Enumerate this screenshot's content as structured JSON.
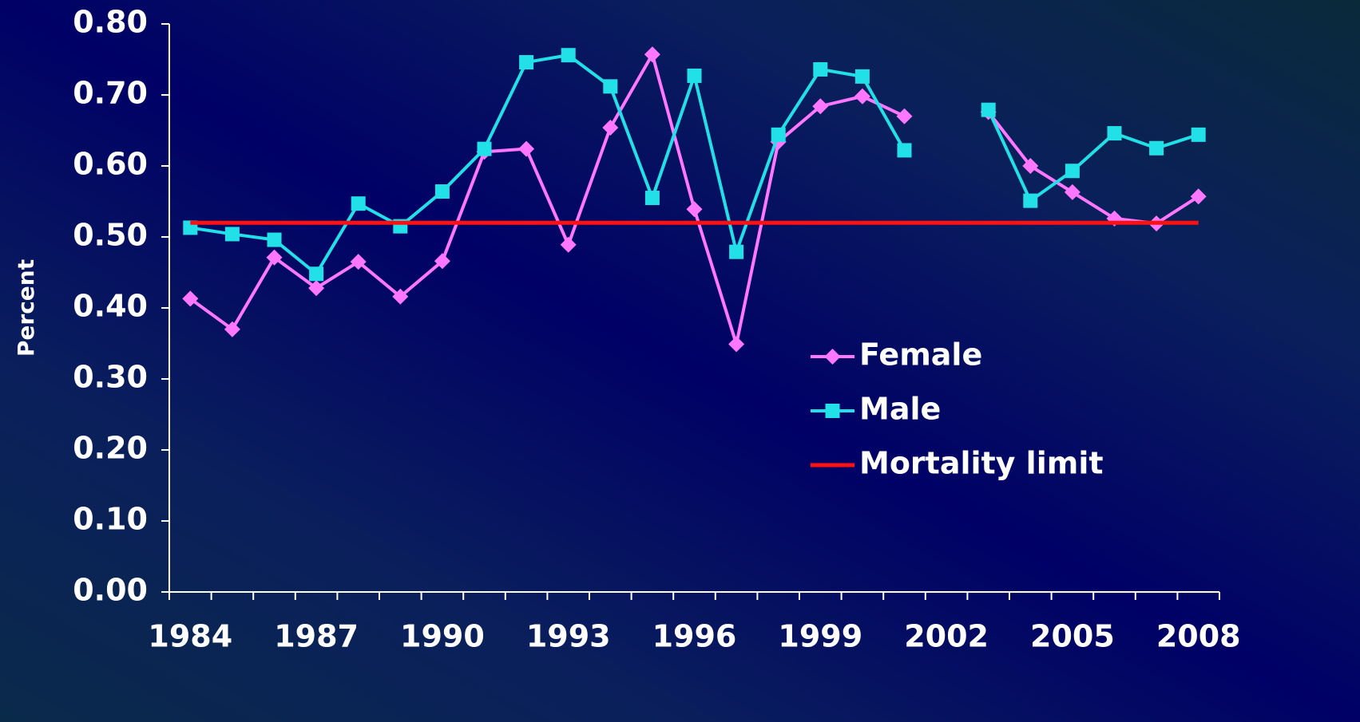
{
  "chart_data": {
    "type": "line",
    "y_label": "Percent",
    "categories": [
      "1984",
      null,
      null,
      "1987",
      null,
      null,
      "1990",
      null,
      null,
      "1993",
      null,
      null,
      "1996",
      null,
      null,
      "1999",
      null,
      null,
      "2002",
      null,
      null,
      "2005",
      null,
      null,
      "2008"
    ],
    "series": [
      {
        "name": "Female",
        "color": "#ff77ff",
        "marker": "diamond",
        "values": [
          0.413,
          0.37,
          0.471,
          0.428,
          0.465,
          0.416,
          0.466,
          0.62,
          0.624,
          0.489,
          0.654,
          0.757,
          0.539,
          0.349,
          0.634,
          0.684,
          0.698,
          0.67,
          null,
          0.676,
          0.6,
          0.563,
          0.526,
          0.519,
          0.557
        ]
      },
      {
        "name": "Male",
        "color": "#22e0e8",
        "marker": "square",
        "values": [
          0.513,
          0.504,
          0.496,
          0.448,
          0.547,
          0.515,
          0.564,
          0.624,
          0.746,
          0.756,
          0.712,
          0.555,
          0.727,
          0.479,
          0.644,
          0.736,
          0.726,
          0.622,
          null,
          0.679,
          0.551,
          0.593,
          0.646,
          0.625,
          0.644
        ]
      },
      {
        "name": "Mortality limit",
        "color": "#ff1111",
        "marker": "none",
        "values": [
          0.52,
          0.52,
          0.52,
          0.52,
          0.52,
          0.52,
          0.52,
          0.52,
          0.52,
          0.52,
          0.52,
          0.52,
          0.52,
          0.52,
          0.52,
          0.52,
          0.52,
          0.52,
          0.52,
          0.52,
          0.52,
          0.52,
          0.52,
          0.52,
          0.52
        ]
      }
    ],
    "ylim": [
      0,
      0.8
    ],
    "yticks": [
      {
        "value": 0,
        "label": "0.00"
      },
      {
        "value": 0.1,
        "label": "0.10"
      },
      {
        "value": 0.2,
        "label": "0.20"
      },
      {
        "value": 0.3,
        "label": "0.30"
      },
      {
        "value": 0.4,
        "label": "0.40"
      },
      {
        "value": 0.5,
        "label": "0.50"
      },
      {
        "value": 0.6,
        "label": "0.60"
      },
      {
        "value": 0.7,
        "label": "0.70"
      },
      {
        "value": 0.8,
        "label": "0.80"
      }
    ],
    "grid": false
  }
}
